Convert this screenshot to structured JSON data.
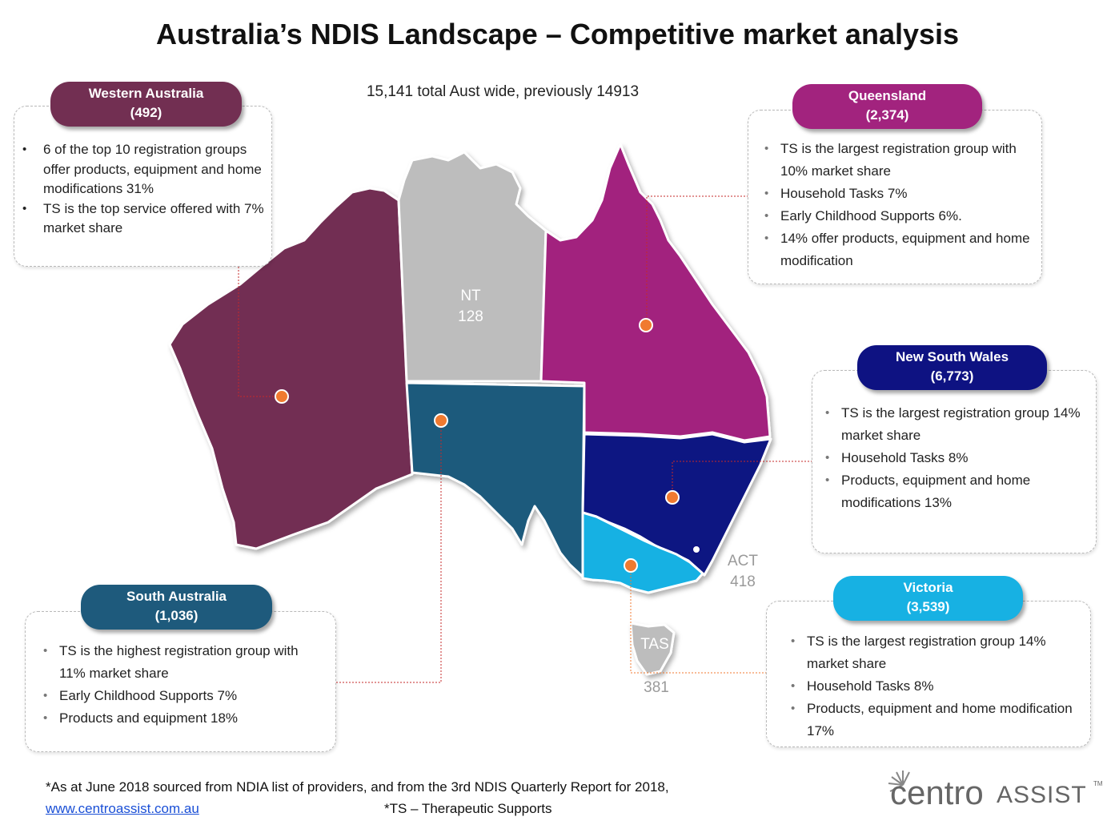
{
  "title": "Australia’s NDIS Landscape – Competitive market analysis",
  "subtitle": "15,141 total Aust wide, previously 14913",
  "states": {
    "wa": {
      "name": "Western Australia",
      "count": "(492)",
      "color": "#722f52",
      "bullets": [
        "6 of the top 10 registration groups offer products, equipment and home modifications 31%",
        "TS is the top service offered with 7% market share"
      ]
    },
    "qld": {
      "name": "Queensland",
      "count": "(2,374)",
      "color": "#a2237e",
      "bullets": [
        "TS is the largest registration group with 10% market share",
        "Household Tasks 7%",
        " Early Childhood Supports 6%.",
        "14% offer products, equipment and home modification"
      ]
    },
    "nsw": {
      "name": "New South Wales",
      "count": "(6,773)",
      "color": "#0e1282",
      "bullets": [
        "TS is the largest registration group 14% market share",
        "Household Tasks 8%",
        "Products, equipment and home modifications 13%"
      ]
    },
    "sa": {
      "name": "South Australia",
      "count": "(1,036)",
      "color": "#1e5a7c",
      "bullets": [
        "TS is the highest registration group with 11% market share",
        "Early Childhood Supports 7%",
        "Products and equipment 18%"
      ]
    },
    "vic": {
      "name": "Victoria",
      "count": "(3,539)",
      "color": "#17b1e3",
      "bullets": [
        "TS is the largest registration group 14% market share",
        "Household Tasks 8%",
        "Products, equipment and home modification 17%"
      ]
    }
  },
  "map_labels": {
    "nt_name": "NT",
    "nt_count": "128",
    "act_name": "ACT",
    "act_count": "418",
    "tas_name": "TAS",
    "tas_count": "381"
  },
  "colors": {
    "nt": "#bdbdbd",
    "tas": "#bdbdbd",
    "marker": "#f07a30"
  },
  "footnote": "*As at June 2018 sourced from NDIA list of providers, and from the 3rd NDIS Quarterly Report for 2018,",
  "footnote_link": "www.centroassist.com.au",
  "footnote_ts": "*TS – Therapeutic Supports",
  "logo": {
    "part1": "centro",
    "part2": "ASSIST",
    "tm": "TM"
  }
}
